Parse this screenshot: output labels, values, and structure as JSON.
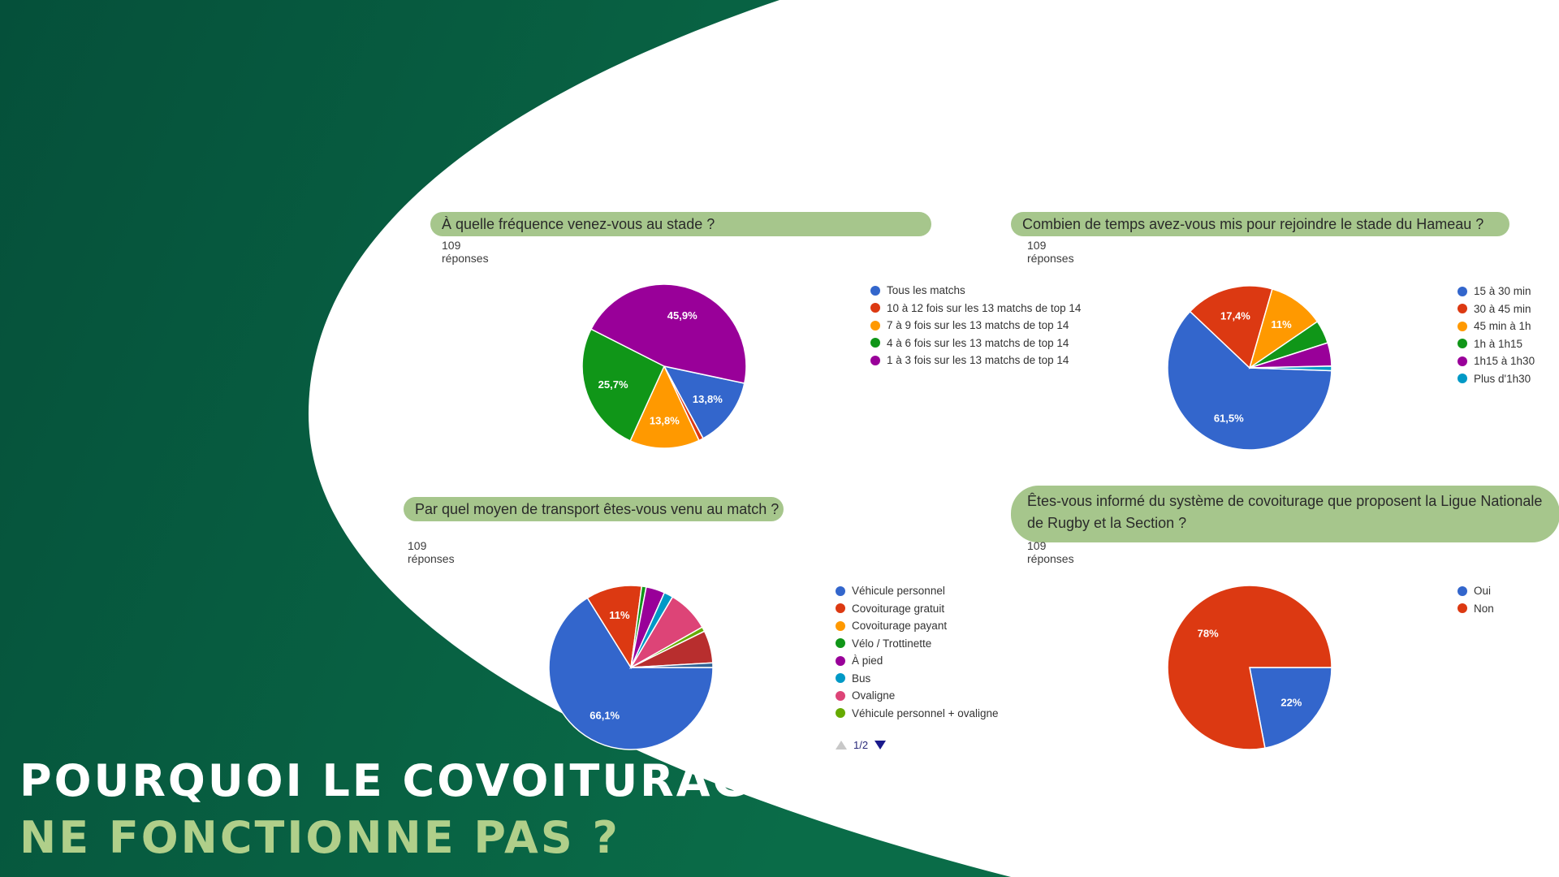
{
  "colors": {
    "dark_green": "#05503a",
    "mid_green": "#0a6c48",
    "title_bar": "#a6c68c",
    "headline_line1": "#ffffff",
    "headline_line2": "#b0cf8a"
  },
  "headline": {
    "line1": "POURQUOI LE COVOITURAGE",
    "line2": "NE FONCTIONNE PAS ?"
  },
  "chart_data": [
    {
      "type": "pie",
      "title": "À quelle fréquence venez-vous au stade ?",
      "subtitle": "109 réponses",
      "legend_position": "right",
      "series": [
        {
          "label": "Tous les matchs",
          "value": 13.8,
          "display": "13,8%",
          "color": "#3366cc"
        },
        {
          "label": "10 à 12 fois sur les 13 matchs de top 14",
          "value": 0.9,
          "display": "",
          "color": "#dc3912"
        },
        {
          "label": "7 à 9 fois sur les 13 matchs de top 14",
          "value": 13.8,
          "display": "13,8%",
          "color": "#ff9900"
        },
        {
          "label": "4 à 6 fois sur les 13 matchs de top 14",
          "value": 25.7,
          "display": "25,7%",
          "color": "#109618"
        },
        {
          "label": "1 à 3 fois sur les 13 matchs de top 14",
          "value": 45.9,
          "display": "45,9%",
          "color": "#990099"
        }
      ]
    },
    {
      "type": "pie",
      "title": "Combien de temps avez-vous mis pour rejoindre le stade du Hameau ?",
      "subtitle": "109 réponses",
      "legend_position": "right",
      "series": [
        {
          "label": "15 à 30 min",
          "value": 61.5,
          "display": "61,5%",
          "color": "#3366cc"
        },
        {
          "label": "30 à 45 min",
          "value": 17.4,
          "display": "17,4%",
          "color": "#dc3912"
        },
        {
          "label": "45 min à 1h",
          "value": 11,
          "display": "11%",
          "color": "#ff9900"
        },
        {
          "label": "1h à 1h15",
          "value": 4.6,
          "display": "",
          "color": "#109618"
        },
        {
          "label": "1h15 à 1h30",
          "value": 4.6,
          "display": "",
          "color": "#990099"
        },
        {
          "label": "Plus d'1h30",
          "value": 0.9,
          "display": "",
          "color": "#0099c6"
        }
      ]
    },
    {
      "type": "pie",
      "title": "Par quel moyen de transport êtes-vous venu au match ?",
      "subtitle": "109 réponses",
      "legend_position": "right",
      "legend_page": "1/2",
      "series": [
        {
          "label": "Véhicule personnel",
          "value": 66.1,
          "display": "66,1%",
          "color": "#3366cc"
        },
        {
          "label": "Covoiturage gratuit",
          "value": 11,
          "display": "11%",
          "color": "#dc3912"
        },
        {
          "label": "Covoiturage payant",
          "value": 0,
          "display": "",
          "color": "#ff9900"
        },
        {
          "label": "Vélo / Trottinette",
          "value": 0.9,
          "display": "",
          "color": "#109618"
        },
        {
          "label": "À pied",
          "value": 3.7,
          "display": "",
          "color": "#990099"
        },
        {
          "label": "Bus",
          "value": 1.8,
          "display": "",
          "color": "#0099c6"
        },
        {
          "label": "Ovaligne",
          "value": 8.3,
          "display": "",
          "color": "#dd4477"
        },
        {
          "label": "Véhicule personnel + ovaligne",
          "value": 0.9,
          "display": "",
          "color": "#66aa00"
        },
        {
          "label": "",
          "value": 6.4,
          "display": "",
          "color": "#b82e2e"
        },
        {
          "label": "",
          "value": 0.9,
          "display": "",
          "color": "#316395"
        }
      ]
    },
    {
      "type": "pie",
      "title": "Êtes-vous informé du système de covoiturage que proposent la Ligue Nationale de Rugby et la Section ?",
      "subtitle": "109 réponses",
      "legend_position": "right",
      "series": [
        {
          "label": "Oui",
          "value": 22,
          "display": "22%",
          "color": "#3366cc"
        },
        {
          "label": "Non",
          "value": 78,
          "display": "78%",
          "color": "#dc3912"
        }
      ]
    }
  ]
}
